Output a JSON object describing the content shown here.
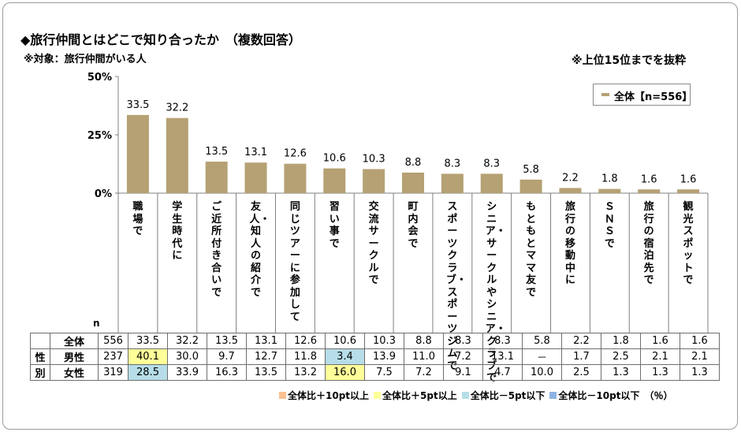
{
  "title": "◆旅行仲間とはどこで知り合ったか　（複数回答）",
  "subtitle": "※対象：旅行仲間がいる人",
  "note": "※上位15位までを抜粋",
  "legend": {
    "series_label": "全体【n=556】"
  },
  "colors": {
    "bar": "#b5a173",
    "plus10": "#fac090",
    "plus5": "#ffff99",
    "minus5": "#b6dde8",
    "minus10": "#8db3e2"
  },
  "chart_data": {
    "type": "bar",
    "categories": [
      "職場で",
      "学生時代に",
      "ご近所付き合いで",
      "友人・知人の紹介で",
      "同じツアーに参加して",
      "習い事で",
      "交流サークルで",
      "町内会で",
      "スポーツクラブ・スポーツジムで",
      "シニア・サークルやシニア・クラブで",
      "もともとママ友で",
      "旅行の移動中に",
      "SNSで",
      "旅行の宿泊先で",
      "観光スポットで"
    ],
    "category_display": [
      "職場で",
      "学生時代に",
      "ご近所付き合いで",
      "友人・知人の紹介で",
      "同じツアーに参加して",
      "習い事で",
      "交流サークルで",
      "町内会で",
      "スポーツクラブ・スポーツジムで",
      "シニア・サークルやシニア・クラブで",
      "もともとママ友で",
      "旅行の移動中に",
      "ＳＮＳで",
      "旅行の宿泊先で",
      "観光スポットで"
    ],
    "series": [
      {
        "name": "全体【n=556】",
        "values": [
          33.5,
          32.2,
          13.5,
          13.1,
          12.6,
          10.6,
          10.3,
          8.8,
          8.3,
          8.3,
          5.8,
          2.2,
          1.8,
          1.6,
          1.6
        ]
      }
    ],
    "ylim": [
      0,
      50
    ],
    "yticks": [
      "0%",
      "25%",
      "50%"
    ],
    "grid": false,
    "legend_position": "top-right"
  },
  "table": {
    "n_header": "n",
    "rows": [
      {
        "group": "",
        "label": "全体",
        "n": "556",
        "values": [
          "33.5",
          "32.2",
          "13.5",
          "13.1",
          "12.6",
          "10.6",
          "10.3",
          "8.8",
          "8.3",
          "8.3",
          "5.8",
          "2.2",
          "1.8",
          "1.6",
          "1.6"
        ],
        "highlights": [
          "",
          "",
          "",
          "",
          "",
          "",
          "",
          "",
          "",
          "",
          "",
          "",
          "",
          "",
          ""
        ]
      },
      {
        "group": "性",
        "label": "男性",
        "n": "237",
        "values": [
          "40.1",
          "30.0",
          "9.7",
          "12.7",
          "11.8",
          "3.4",
          "13.9",
          "11.0",
          "7.2",
          "13.1",
          "－",
          "1.7",
          "2.5",
          "2.1",
          "2.1"
        ],
        "highlights": [
          "plus5",
          "",
          "",
          "",
          "",
          "minus5",
          "",
          "",
          "",
          "",
          "",
          "",
          "",
          "",
          ""
        ]
      },
      {
        "group": "別",
        "label": "女性",
        "n": "319",
        "values": [
          "28.5",
          "33.9",
          "16.3",
          "13.5",
          "13.2",
          "16.0",
          "7.5",
          "7.2",
          "9.1",
          "4.7",
          "10.0",
          "2.5",
          "1.3",
          "1.3",
          "1.3"
        ],
        "highlights": [
          "minus5",
          "",
          "",
          "",
          "",
          "plus5",
          "",
          "",
          "",
          "",
          "",
          "",
          "",
          "",
          ""
        ]
      }
    ]
  },
  "table_legend": [
    {
      "key": "plus10",
      "label": "全体比＋10pt以上"
    },
    {
      "key": "plus5",
      "label": "全体比＋5pt以上"
    },
    {
      "key": "minus5",
      "label": "全体比－5pt以下"
    },
    {
      "key": "minus10",
      "label": "全体比－10pt以下"
    }
  ],
  "unit": "（％）"
}
